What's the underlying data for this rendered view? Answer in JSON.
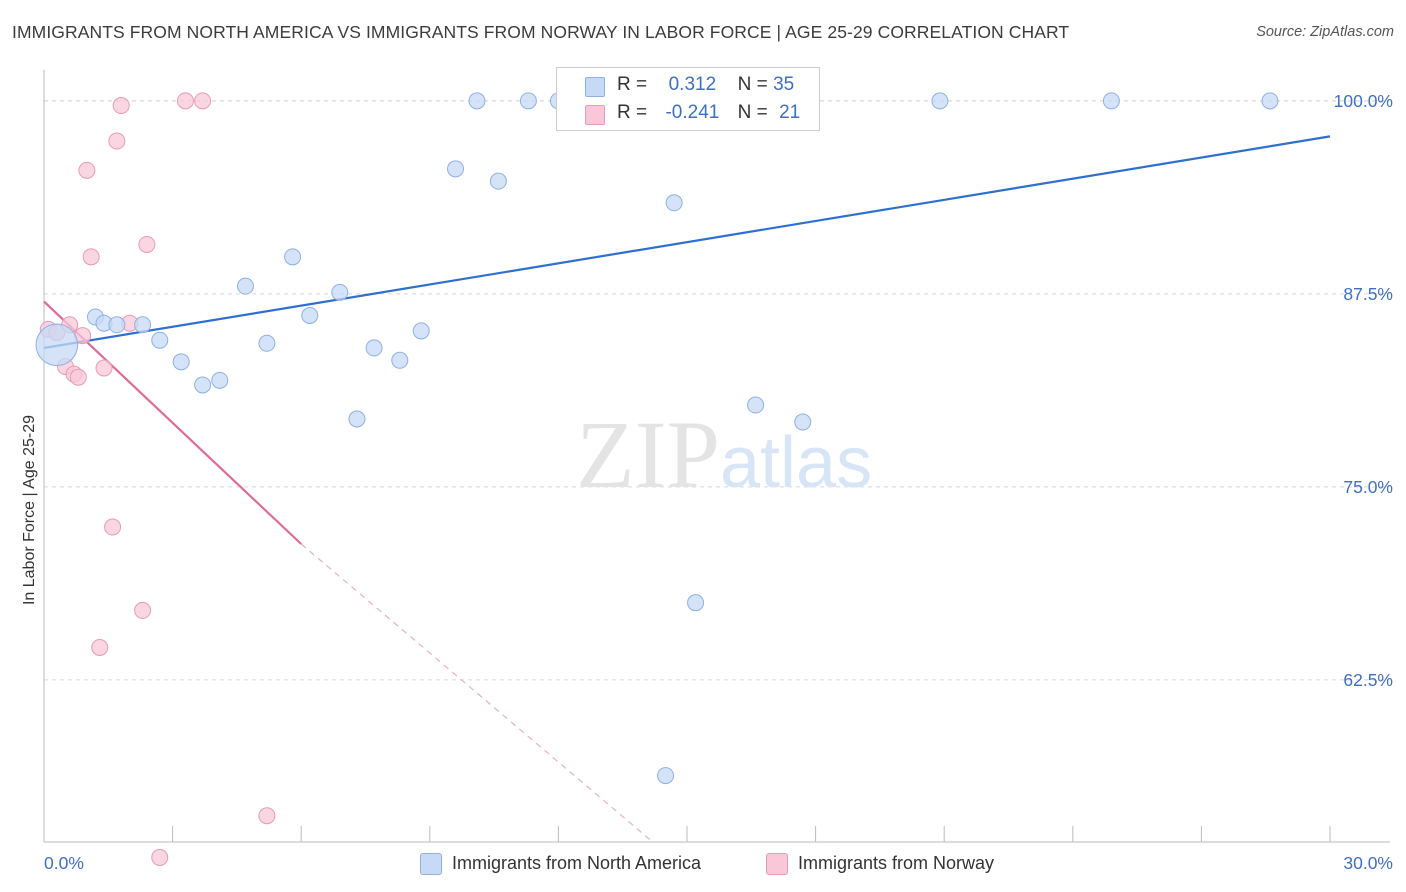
{
  "title": "IMMIGRANTS FROM NORTH AMERICA VS IMMIGRANTS FROM NORWAY IN LABOR FORCE | AGE 25-29 CORRELATION CHART",
  "source": "Source: ZipAtlas.com",
  "watermark": {
    "zip": "ZIP",
    "atlas": "atlas"
  },
  "colors": {
    "north_america_fill": "#c6d9f5",
    "north_america_stroke": "#8fb0e3",
    "north_america_line": "#2f6fcf",
    "norway_fill": "#f8c8d8",
    "norway_stroke": "#e89ab5",
    "norway_line": "#e06a98",
    "axis_label": "#3d6fc4"
  },
  "legend": {
    "rows": [
      {
        "r_label": "R =",
        "r_value": "0.312",
        "n_label": "N =",
        "n_value": "35"
      },
      {
        "r_label": "R =",
        "r_value": "-0.241",
        "n_label": "N =",
        "n_value": "21"
      }
    ],
    "bottom": [
      "Immigrants from North America",
      "Immigrants from Norway"
    ]
  },
  "chart_data": {
    "type": "scatter",
    "title": "IMMIGRANTS FROM NORTH AMERICA VS IMMIGRANTS FROM NORWAY IN LABOR FORCE | AGE 25-29 CORRELATION CHART",
    "xlabel": "",
    "ylabel": "In Labor Force | Age 25-29",
    "xlim": [
      0,
      30
    ],
    "ylim": [
      52,
      102
    ],
    "x_tick_labels": [
      "0.0%",
      "30.0%"
    ],
    "y_ticks": [
      62.5,
      75.0,
      87.5,
      100.0
    ],
    "y_tick_labels": [
      "62.5%",
      "75.0%",
      "87.5%",
      "100.0%"
    ],
    "grid": "horizontal dashed",
    "legend_placement": "top-center and bottom",
    "series": [
      {
        "name": "Immigrants from North America",
        "r": 0.312,
        "n": 35,
        "trend": {
          "x": [
            0,
            30
          ],
          "y": [
            84.0,
            97.7
          ]
        },
        "points": [
          {
            "x": 0.3,
            "y": 84.2,
            "s": 2.6
          },
          {
            "x": 1.2,
            "y": 86.0
          },
          {
            "x": 1.4,
            "y": 85.6
          },
          {
            "x": 1.7,
            "y": 85.5
          },
          {
            "x": 2.3,
            "y": 85.5
          },
          {
            "x": 2.7,
            "y": 84.5
          },
          {
            "x": 3.2,
            "y": 83.1
          },
          {
            "x": 3.7,
            "y": 81.6
          },
          {
            "x": 4.1,
            "y": 81.9
          },
          {
            "x": 4.7,
            "y": 88.0
          },
          {
            "x": 5.2,
            "y": 84.3
          },
          {
            "x": 5.8,
            "y": 89.9
          },
          {
            "x": 6.2,
            "y": 86.1
          },
          {
            "x": 6.9,
            "y": 87.6
          },
          {
            "x": 7.3,
            "y": 79.4
          },
          {
            "x": 7.7,
            "y": 84.0
          },
          {
            "x": 8.3,
            "y": 83.2
          },
          {
            "x": 8.8,
            "y": 85.1
          },
          {
            "x": 9.6,
            "y": 95.6
          },
          {
            "x": 10.1,
            "y": 100.0
          },
          {
            "x": 10.6,
            "y": 94.8
          },
          {
            "x": 11.3,
            "y": 100.0
          },
          {
            "x": 12.0,
            "y": 100.0
          },
          {
            "x": 12.6,
            "y": 100.0
          },
          {
            "x": 13.2,
            "y": 100.0
          },
          {
            "x": 13.5,
            "y": 100.0
          },
          {
            "x": 14.7,
            "y": 93.4
          },
          {
            "x": 15.2,
            "y": 67.5
          },
          {
            "x": 14.5,
            "y": 56.3
          },
          {
            "x": 16.1,
            "y": 100.0
          },
          {
            "x": 16.6,
            "y": 80.3
          },
          {
            "x": 17.7,
            "y": 79.2
          },
          {
            "x": 20.9,
            "y": 100.0
          },
          {
            "x": 24.9,
            "y": 100.0
          },
          {
            "x": 28.6,
            "y": 100.0
          }
        ]
      },
      {
        "name": "Immigrants from Norway",
        "r": -0.241,
        "n": 21,
        "trend": {
          "x": [
            0,
            6.0
          ],
          "y": [
            87.0,
            71.3
          ]
        },
        "trend_extension": {
          "x": [
            6.0,
            14.2
          ],
          "y": [
            71.3,
            52.0
          ]
        },
        "points": [
          {
            "x": 0.1,
            "y": 85.2
          },
          {
            "x": 0.3,
            "y": 85.0
          },
          {
            "x": 0.5,
            "y": 82.8
          },
          {
            "x": 0.6,
            "y": 85.5
          },
          {
            "x": 0.7,
            "y": 82.3
          },
          {
            "x": 0.8,
            "y": 82.1
          },
          {
            "x": 0.9,
            "y": 84.8
          },
          {
            "x": 1.0,
            "y": 95.5
          },
          {
            "x": 1.1,
            "y": 89.9
          },
          {
            "x": 1.3,
            "y": 64.6
          },
          {
            "x": 1.4,
            "y": 82.7
          },
          {
            "x": 1.6,
            "y": 72.4
          },
          {
            "x": 1.7,
            "y": 97.4
          },
          {
            "x": 1.8,
            "y": 99.7
          },
          {
            "x": 2.0,
            "y": 85.6
          },
          {
            "x": 2.3,
            "y": 67.0
          },
          {
            "x": 2.4,
            "y": 90.7
          },
          {
            "x": 2.7,
            "y": 51.0
          },
          {
            "x": 3.3,
            "y": 100.0
          },
          {
            "x": 3.7,
            "y": 100.0
          },
          {
            "x": 5.2,
            "y": 53.7
          }
        ]
      }
    ]
  }
}
